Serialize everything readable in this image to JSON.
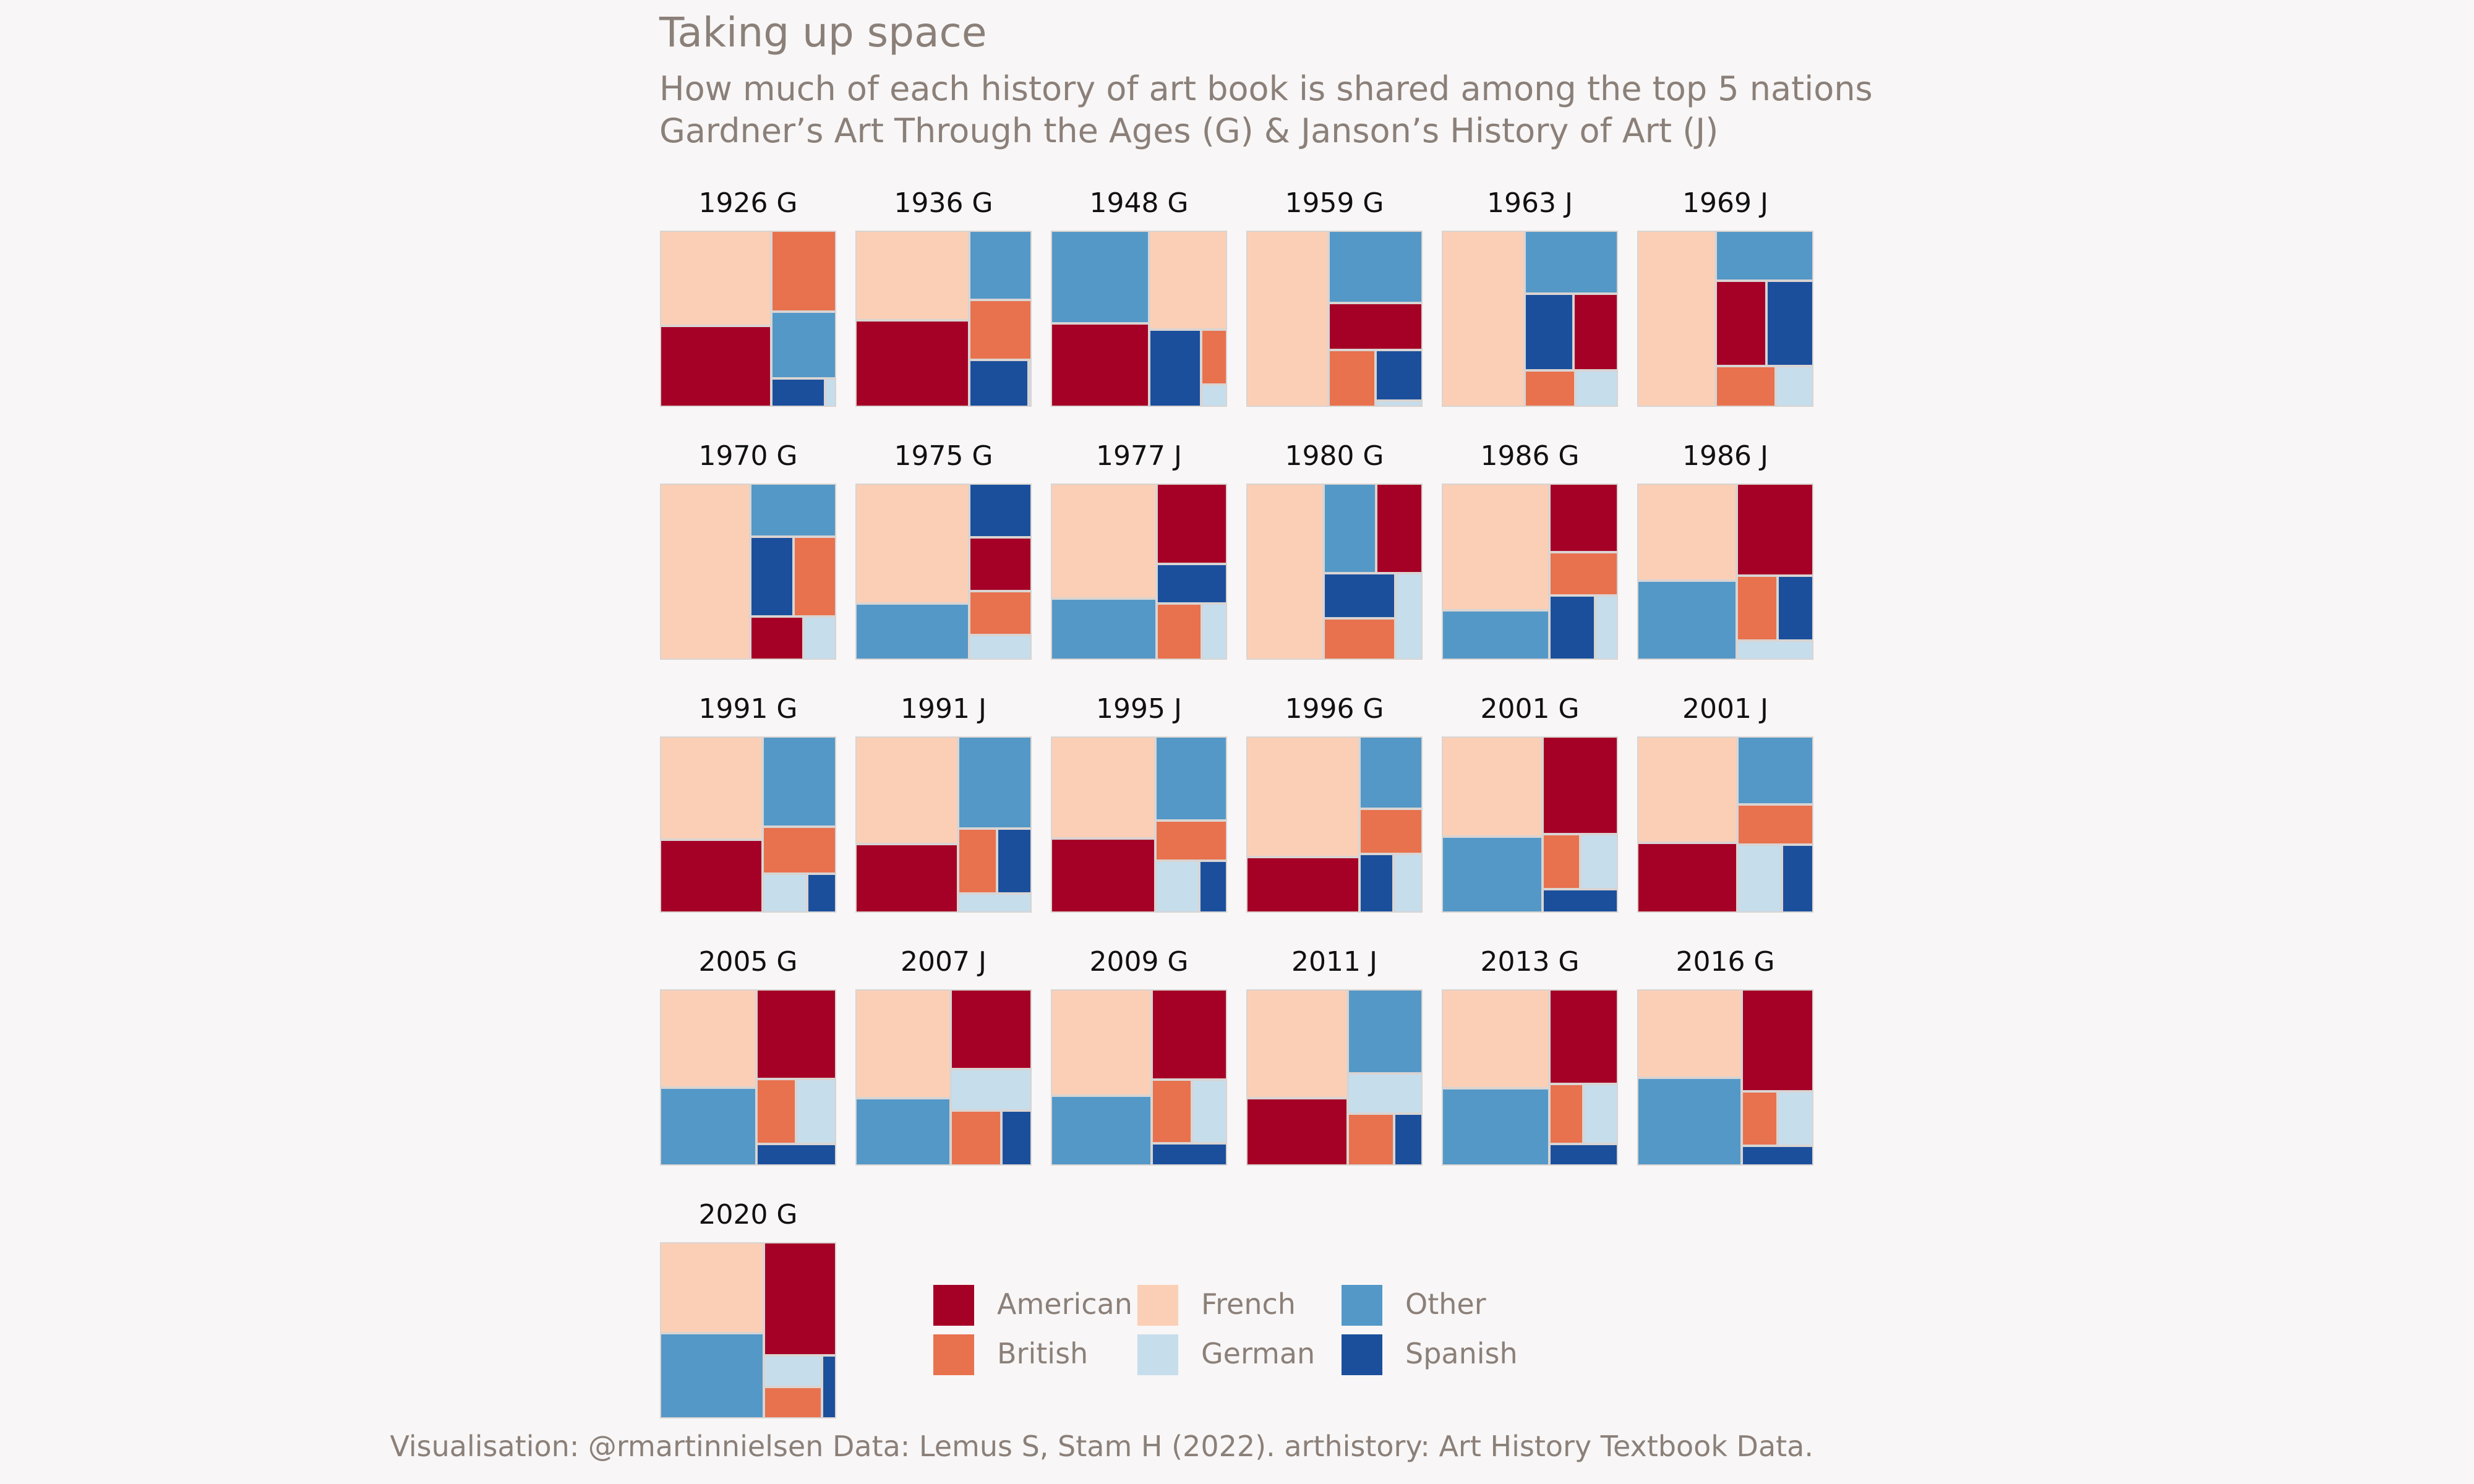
{
  "title": "Taking up space",
  "subtitle_line1": "How much of each history of art book is shared among the top 5 nations",
  "subtitle_line2": "Gardner’s Art Through the Ages (G) & Janson’s History of Art (J)",
  "caption": "Visualisation: @rmartinnielsen Data: Lemus S, Stam H (2022). arthistory: Art History Textbook Data.",
  "colors": {
    "American": "#a50026",
    "British": "#e8714e",
    "French": "#fbcfb6",
    "German": "#c6ddec",
    "Other": "#5498c7",
    "Spanish": "#1b4f9c"
  },
  "legend": [
    {
      "key": "American",
      "label": "American"
    },
    {
      "key": "British",
      "label": "British"
    },
    {
      "key": "French",
      "label": "French"
    },
    {
      "key": "German",
      "label": "German"
    },
    {
      "key": "Other",
      "label": "Other"
    },
    {
      "key": "Spanish",
      "label": "Spanish"
    }
  ],
  "chart_data": {
    "type": "treemap",
    "unit": "share of book",
    "panels": [
      {
        "label": "1926 G",
        "values": {
          "French": 0.34,
          "American": 0.29,
          "Other": 0.14,
          "British": 0.17,
          "Spanish": 0.05,
          "German": 0.01
        }
      },
      {
        "label": "1936 G",
        "values": {
          "French": 0.33,
          "American": 0.32,
          "Other": 0.14,
          "British": 0.12,
          "Spanish": 0.09,
          "German": 0.005
        }
      },
      {
        "label": "1948 G",
        "values": {
          "Other": 0.32,
          "American": 0.29,
          "French": 0.27,
          "Spanish": 0.14,
          "British": 0.05,
          "German": 0.02
        }
      },
      {
        "label": "1959 G",
        "values": {
          "French": 0.49,
          "Other": 0.23,
          "American": 0.15,
          "British": 0.09,
          "Spanish": 0.08,
          "German": 0.01
        }
      },
      {
        "label": "1963 J",
        "values": {
          "French": 0.47,
          "Other": 0.19,
          "Spanish": 0.12,
          "American": 0.11,
          "British": 0.06,
          "German": 0.05
        }
      },
      {
        "label": "1969 J",
        "values": {
          "French": 0.45,
          "Other": 0.16,
          "American": 0.14,
          "Spanish": 0.13,
          "British": 0.08,
          "German": 0.05
        }
      },
      {
        "label": "1970 G",
        "values": {
          "French": 0.56,
          "Other": 0.16,
          "Spanish": 0.12,
          "British": 0.12,
          "American": 0.08,
          "German": 0.05
        }
      },
      {
        "label": "1975 G",
        "values": {
          "French": 0.45,
          "Other": 0.21,
          "Spanish": 0.11,
          "American": 0.11,
          "British": 0.09,
          "German": 0.05
        }
      },
      {
        "label": "1977 J",
        "values": {
          "French": 0.43,
          "Other": 0.23,
          "American": 0.2,
          "Spanish": 0.1,
          "British": 0.09,
          "German": 0.05
        }
      },
      {
        "label": "1980 G",
        "values": {
          "French": 0.46,
          "Other": 0.16,
          "American": 0.14,
          "Spanish": 0.11,
          "British": 0.1,
          "German": 0.08
        }
      },
      {
        "label": "1986 G",
        "values": {
          "French": 0.46,
          "Other": 0.18,
          "American": 0.16,
          "British": 0.1,
          "Spanish": 0.1,
          "German": 0.05
        }
      },
      {
        "label": "1986 J",
        "values": {
          "French": 0.33,
          "Other": 0.27,
          "American": 0.24,
          "British": 0.09,
          "Spanish": 0.08,
          "German": 0.05
        }
      },
      {
        "label": "1991 G",
        "values": {
          "French": 0.37,
          "American": 0.26,
          "Other": 0.23,
          "British": 0.12,
          "German": 0.06,
          "Spanish": 0.04
        }
      },
      {
        "label": "1991 J",
        "values": {
          "French": 0.39,
          "American": 0.25,
          "Other": 0.24,
          "British": 0.09,
          "Spanish": 0.08,
          "German": 0.05
        }
      },
      {
        "label": "1995 J",
        "values": {
          "French": 0.37,
          "American": 0.27,
          "Other": 0.21,
          "British": 0.1,
          "German": 0.08,
          "Spanish": 0.05
        }
      },
      {
        "label": "1996 G",
        "values": {
          "French": 0.48,
          "American": 0.22,
          "Other": 0.16,
          "British": 0.1,
          "Spanish": 0.07,
          "German": 0.06
        }
      },
      {
        "label": "2001 G",
        "values": {
          "French": 0.34,
          "Other": 0.26,
          "American": 0.25,
          "British": 0.07,
          "German": 0.07,
          "Spanish": 0.06
        }
      },
      {
        "label": "2001 J",
        "values": {
          "French": 0.35,
          "American": 0.23,
          "Other": 0.17,
          "British": 0.1,
          "German": 0.1,
          "Spanish": 0.07
        }
      },
      {
        "label": "2005 G",
        "values": {
          "French": 0.33,
          "Other": 0.26,
          "American": 0.25,
          "British": 0.09,
          "German": 0.09,
          "Spanish": 0.06
        }
      },
      {
        "label": "2007 J",
        "values": {
          "French": 0.37,
          "Other": 0.23,
          "American": 0.23,
          "German": 0.12,
          "British": 0.1,
          "Spanish": 0.06
        }
      },
      {
        "label": "2009 G",
        "values": {
          "French": 0.38,
          "Other": 0.25,
          "American": 0.24,
          "British": 0.09,
          "German": 0.08,
          "Spanish": 0.06
        }
      },
      {
        "label": "2011 J",
        "values": {
          "French": 0.37,
          "American": 0.23,
          "Other": 0.21,
          "German": 0.1,
          "British": 0.08,
          "Spanish": 0.05
        }
      },
      {
        "label": "2013 G",
        "values": {
          "French": 0.36,
          "Other": 0.28,
          "American": 0.22,
          "British": 0.07,
          "German": 0.07,
          "Spanish": 0.05
        }
      },
      {
        "label": "2016 G",
        "values": {
          "French": 0.33,
          "Other": 0.33,
          "American": 0.26,
          "British": 0.07,
          "German": 0.07,
          "Spanish": 0.05
        }
      },
      {
        "label": "2020 G",
        "values": {
          "French": 0.31,
          "Other": 0.29,
          "American": 0.27,
          "German": 0.06,
          "British": 0.06,
          "Spanish": 0.03
        }
      }
    ]
  }
}
